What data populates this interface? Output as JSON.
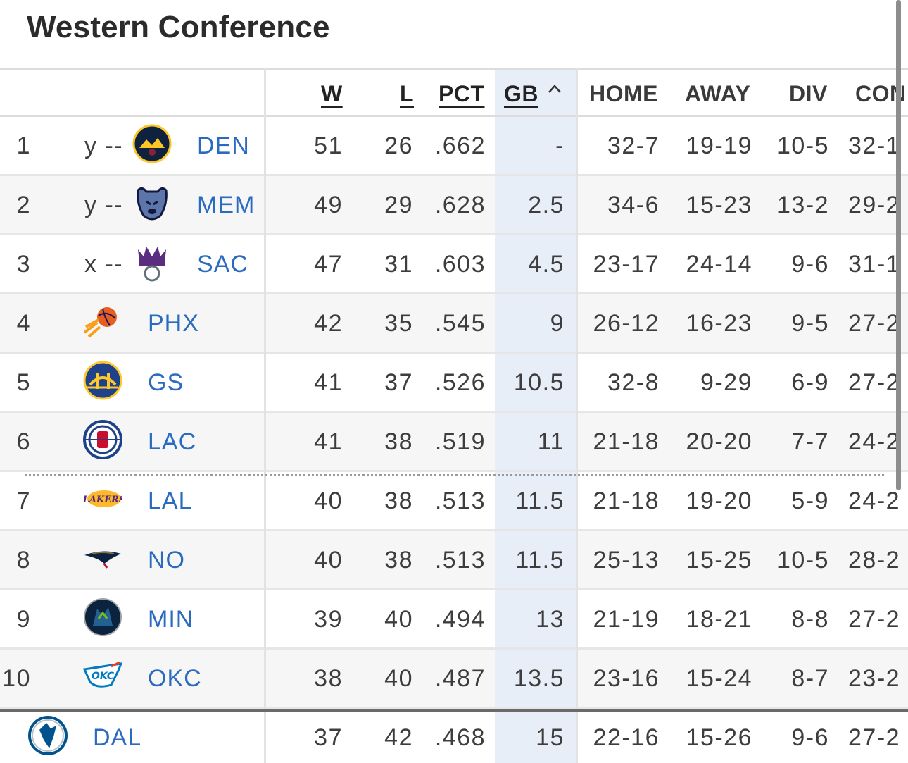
{
  "title": "Western Conference",
  "columns": {
    "w": "W",
    "l": "L",
    "pct": "PCT",
    "gb": "GB",
    "home": "HOME",
    "away": "AWAY",
    "div": "DIV",
    "conf": "CON"
  },
  "sort_icon": "chevron-up-icon",
  "colors": {
    "link": "#2b6bbf",
    "gb_highlight": "#e8eef7",
    "alt_row": "#f6f6f6"
  },
  "rows": [
    {
      "rank": "1",
      "clinch": "y --",
      "abbr": "DEN",
      "logo": "nuggets-logo-icon",
      "w": "51",
      "l": "26",
      "pct": ".662",
      "gb": "-",
      "home": "32-7",
      "away": "19-19",
      "div": "10-5",
      "conf": "32-1"
    },
    {
      "rank": "2",
      "clinch": "y --",
      "abbr": "MEM",
      "logo": "grizzlies-logo-icon",
      "w": "49",
      "l": "29",
      "pct": ".628",
      "gb": "2.5",
      "home": "34-6",
      "away": "15-23",
      "div": "13-2",
      "conf": "29-2"
    },
    {
      "rank": "3",
      "clinch": "x --",
      "abbr": "SAC",
      "logo": "kings-logo-icon",
      "w": "47",
      "l": "31",
      "pct": ".603",
      "gb": "4.5",
      "home": "23-17",
      "away": "24-14",
      "div": "9-6",
      "conf": "31-1"
    },
    {
      "rank": "4",
      "clinch": "",
      "abbr": "PHX",
      "logo": "suns-logo-icon",
      "w": "42",
      "l": "35",
      "pct": ".545",
      "gb": "9",
      "home": "26-12",
      "away": "16-23",
      "div": "9-5",
      "conf": "27-2"
    },
    {
      "rank": "5",
      "clinch": "",
      "abbr": "GS",
      "logo": "warriors-logo-icon",
      "w": "41",
      "l": "37",
      "pct": ".526",
      "gb": "10.5",
      "home": "32-8",
      "away": "9-29",
      "div": "6-9",
      "conf": "27-2"
    },
    {
      "rank": "6",
      "clinch": "",
      "abbr": "LAC",
      "logo": "clippers-logo-icon",
      "w": "41",
      "l": "38",
      "pct": ".519",
      "gb": "11",
      "home": "21-18",
      "away": "20-20",
      "div": "7-7",
      "conf": "24-2"
    },
    {
      "rank": "7",
      "clinch": "",
      "abbr": "LAL",
      "logo": "lakers-logo-icon",
      "w": "40",
      "l": "38",
      "pct": ".513",
      "gb": "11.5",
      "home": "21-18",
      "away": "19-20",
      "div": "5-9",
      "conf": "24-2"
    },
    {
      "rank": "8",
      "clinch": "",
      "abbr": "NO",
      "logo": "pelicans-logo-icon",
      "w": "40",
      "l": "38",
      "pct": ".513",
      "gb": "11.5",
      "home": "25-13",
      "away": "15-25",
      "div": "10-5",
      "conf": "28-2"
    },
    {
      "rank": "9",
      "clinch": "",
      "abbr": "MIN",
      "logo": "timberwolves-logo-icon",
      "w": "39",
      "l": "40",
      "pct": ".494",
      "gb": "13",
      "home": "21-19",
      "away": "18-21",
      "div": "8-8",
      "conf": "27-2"
    },
    {
      "rank": "10",
      "clinch": "",
      "abbr": "OKC",
      "logo": "thunder-logo-icon",
      "w": "38",
      "l": "40",
      "pct": ".487",
      "gb": "13.5",
      "home": "23-16",
      "away": "15-24",
      "div": "8-7",
      "conf": "23-2"
    },
    {
      "rank": "",
      "clinch": "",
      "abbr": "DAL",
      "logo": "mavericks-logo-icon",
      "w": "37",
      "l": "42",
      "pct": ".468",
      "gb": "15",
      "home": "22-16",
      "away": "15-26",
      "div": "9-6",
      "conf": "27-2"
    }
  ]
}
